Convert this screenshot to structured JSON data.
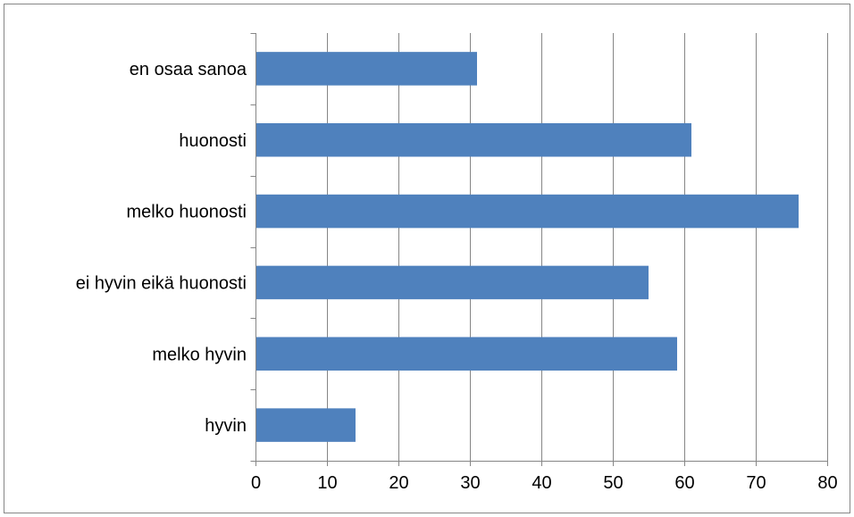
{
  "chart_data": {
    "type": "bar",
    "orientation": "horizontal",
    "categories": [
      "hyvin",
      "melko hyvin",
      "ei hyvin eikä huonosti",
      "melko huonosti",
      "huonosti",
      "en osaa sanoa"
    ],
    "values": [
      14,
      59,
      55,
      76,
      61,
      31
    ],
    "xlim": [
      0,
      80
    ],
    "xticks": [
      "0",
      "10",
      "20",
      "30",
      "40",
      "50",
      "60",
      "70",
      "80"
    ],
    "grid": "vertical",
    "legend": "none",
    "bar_color": "#4F81BD",
    "axis_color": "#868686",
    "grid_color": "#868686"
  }
}
